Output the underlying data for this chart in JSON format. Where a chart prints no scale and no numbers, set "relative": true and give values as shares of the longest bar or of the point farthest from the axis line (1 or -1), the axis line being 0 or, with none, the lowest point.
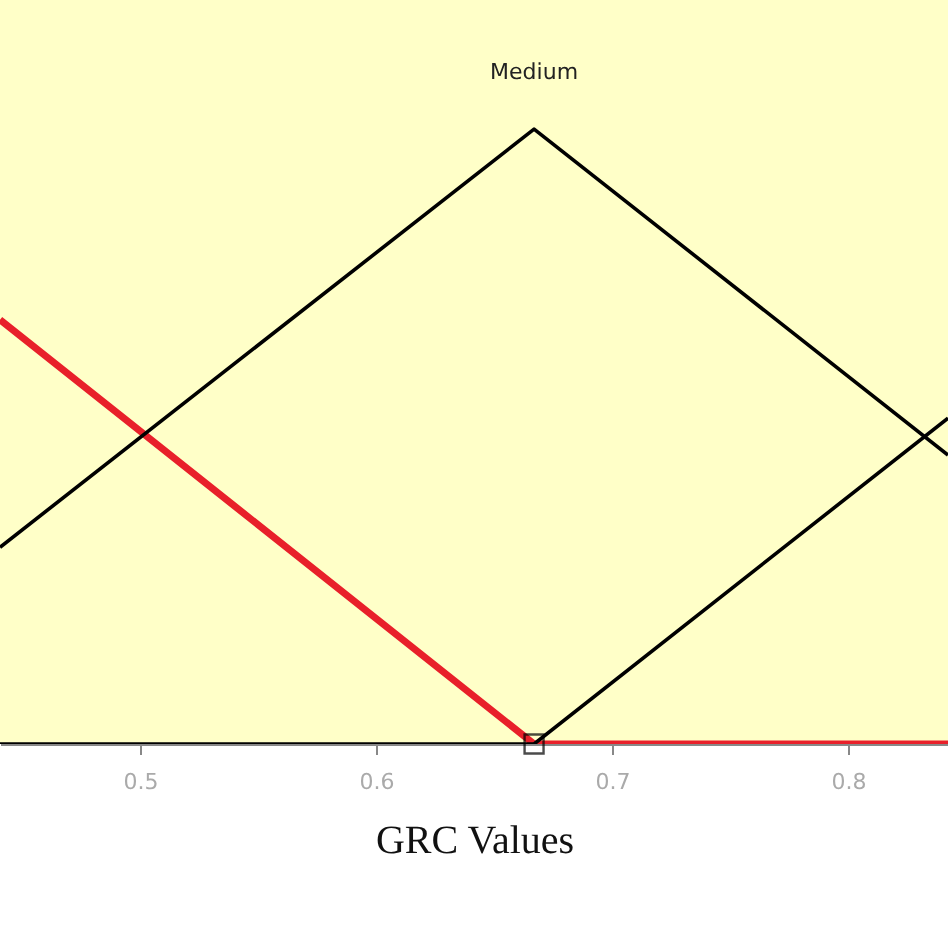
{
  "chart_data": {
    "type": "line",
    "xlabel": "GRC Values",
    "relative": true,
    "xlim": [
      0.4407,
      0.8424
    ],
    "xticks": [
      0.5,
      0.6,
      0.7,
      0.8
    ],
    "grid": false,
    "legend": false,
    "tick_labels": "x",
    "line_style": "solid",
    "series": [
      {
        "color": "#e8202a",
        "x": [
          0.4407,
          0.667,
          0.8424
        ],
        "values": [
          0.69,
          0,
          0
        ]
      },
      {
        "name": "Medium",
        "color": "#000000",
        "x": [
          0.4407,
          0.667,
          0.8424
        ],
        "values": [
          0.32,
          1,
          0.47
        ]
      },
      {
        "color": "#000000",
        "x": [
          0.4407,
          0.667,
          0.8424
        ],
        "values": [
          0,
          0,
          0.53
        ]
      },
      {
        "type": "scatter",
        "marker": "square",
        "color": "#000000",
        "x": [
          0.667
        ],
        "values": [
          0
        ]
      }
    ]
  }
}
